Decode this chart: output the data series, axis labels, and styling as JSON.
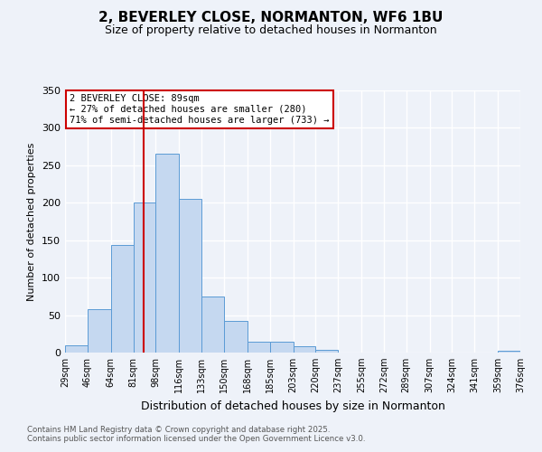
{
  "title": "2, BEVERLEY CLOSE, NORMANTON, WF6 1BU",
  "subtitle": "Size of property relative to detached houses in Normanton",
  "xlabel": "Distribution of detached houses by size in Normanton",
  "ylabel": "Number of detached properties",
  "bar_heights": [
    10,
    58,
    144,
    200,
    265,
    205,
    75,
    42,
    15,
    15,
    8,
    4,
    0,
    0,
    0,
    0,
    0,
    0,
    0,
    2
  ],
  "bin_edges": [
    29,
    46,
    64,
    81,
    98,
    116,
    133,
    150,
    168,
    185,
    203,
    220,
    237,
    255,
    272,
    289,
    307,
    324,
    341,
    359,
    376
  ],
  "tick_labels": [
    "29sqm",
    "46sqm",
    "64sqm",
    "81sqm",
    "98sqm",
    "116sqm",
    "133sqm",
    "150sqm",
    "168sqm",
    "185sqm",
    "203sqm",
    "220sqm",
    "237sqm",
    "255sqm",
    "272sqm",
    "289sqm",
    "307sqm",
    "324sqm",
    "341sqm",
    "359sqm",
    "376sqm"
  ],
  "bar_color": "#c5d8f0",
  "bar_edge_color": "#5b9bd5",
  "vline_x": 89,
  "vline_color": "#cc0000",
  "annotation_text": "2 BEVERLEY CLOSE: 89sqm\n← 27% of detached houses are smaller (280)\n71% of semi-detached houses are larger (733) →",
  "annotation_box_color": "#ffffff",
  "annotation_box_edge_color": "#cc0000",
  "ylim": [
    0,
    350
  ],
  "yticks": [
    0,
    50,
    100,
    150,
    200,
    250,
    300,
    350
  ],
  "footer1": "Contains HM Land Registry data © Crown copyright and database right 2025.",
  "footer2": "Contains public sector information licensed under the Open Government Licence v3.0.",
  "bg_color": "#eef2f9",
  "grid_color": "#ffffff"
}
